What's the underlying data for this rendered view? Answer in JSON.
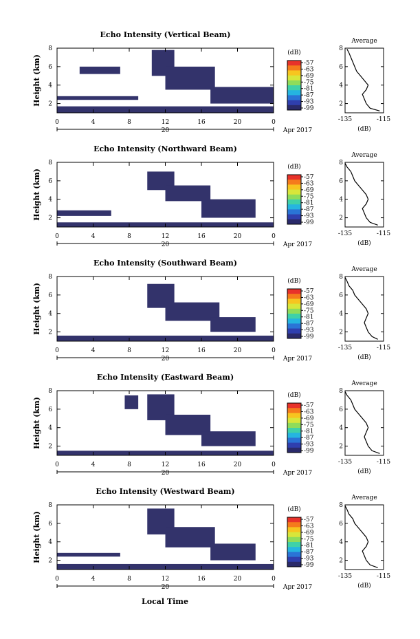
{
  "figure": {
    "x_label": "Local Time",
    "date_label": "Apr 2017",
    "day_label": "20",
    "ylabel": "Height (km)",
    "colorbar_unit": "(dB)",
    "colorbar_ticks": [
      "-57",
      "-63",
      "-69",
      "-75",
      "-81",
      "-87",
      "-93",
      "-99"
    ],
    "colorbar_colors": [
      "#e8322a",
      "#f57b1c",
      "#f7c51f",
      "#d8e63a",
      "#8fdc5a",
      "#3fd1a8",
      "#25b5e0",
      "#2a74d6",
      "#2f3fae",
      "#2a2a6a"
    ],
    "avg_title": "Average",
    "avg_xlabel": "(dB)",
    "avg_xticks": [
      "-135",
      "-115"
    ]
  },
  "chart_data": [
    {
      "type": "heatmap",
      "title": "Echo Intensity (Vertical Beam)",
      "xlabel": "Local Time",
      "ylabel": "Height (km)",
      "xlim": [
        0,
        24
      ],
      "ylim": [
        1,
        8
      ],
      "xticks": [
        "0",
        "4",
        "8",
        "12",
        "16",
        "20",
        "0"
      ],
      "yticks": [
        "2",
        "4",
        "6",
        "8"
      ],
      "colorbar": {
        "label": "(dB)",
        "range": [
          -99,
          -57
        ]
      },
      "echo_regions": [
        {
          "t": [
            0,
            24
          ],
          "h": [
            1.0,
            1.7
          ],
          "level": -99
        },
        {
          "t": [
            10.5,
            13
          ],
          "h": [
            5.0,
            7.8
          ],
          "level": -99
        },
        {
          "t": [
            12,
            17.5
          ],
          "h": [
            3.5,
            6.0
          ],
          "level": -99
        },
        {
          "t": [
            17,
            24
          ],
          "h": [
            2.0,
            3.8
          ],
          "level": -99
        },
        {
          "t": [
            0,
            9
          ],
          "h": [
            2.4,
            2.8
          ],
          "level": -99
        },
        {
          "t": [
            2.5,
            7
          ],
          "h": [
            5.2,
            6.0
          ],
          "level": -99
        }
      ],
      "average_profile": {
        "title": "Average",
        "xlabel": "(dB)",
        "xlim": [
          -135,
          -115
        ],
        "ylim": [
          1,
          8
        ],
        "height": [
          1.2,
          1.5,
          2.0,
          2.5,
          3.0,
          3.5,
          4.0,
          4.5,
          5.0,
          5.5,
          6.0,
          6.5,
          7.0,
          7.5,
          7.9
        ],
        "db": [
          -117,
          -122,
          -124,
          -125,
          -126,
          -124,
          -123,
          -125,
          -127,
          -129,
          -130,
          -131,
          -132,
          -133,
          -134
        ]
      }
    },
    {
      "type": "heatmap",
      "title": "Echo Intensity (Northward Beam)",
      "xlabel": "Local Time",
      "ylabel": "Height (km)",
      "xlim": [
        0,
        24
      ],
      "ylim": [
        1,
        8
      ],
      "xticks": [
        "0",
        "4",
        "8",
        "12",
        "16",
        "20",
        "0"
      ],
      "yticks": [
        "2",
        "4",
        "6",
        "8"
      ],
      "colorbar": {
        "label": "(dB)",
        "range": [
          -99,
          -57
        ]
      },
      "echo_regions": [
        {
          "t": [
            0,
            24
          ],
          "h": [
            1.0,
            1.5
          ],
          "level": -99
        },
        {
          "t": [
            10,
            13
          ],
          "h": [
            5.0,
            7.0
          ],
          "level": -99
        },
        {
          "t": [
            12,
            17
          ],
          "h": [
            3.8,
            5.5
          ],
          "level": -99
        },
        {
          "t": [
            16,
            22
          ],
          "h": [
            2.0,
            4.0
          ],
          "level": -99
        },
        {
          "t": [
            0,
            6
          ],
          "h": [
            2.2,
            2.8
          ],
          "level": -99
        }
      ],
      "average_profile": {
        "title": "Average",
        "xlabel": "(dB)",
        "xlim": [
          -135,
          -115
        ],
        "ylim": [
          1,
          8
        ],
        "height": [
          1.2,
          1.5,
          2.0,
          2.5,
          3.0,
          3.5,
          4.0,
          4.5,
          5.0,
          5.5,
          6.0,
          6.5,
          7.0,
          7.5,
          7.9
        ],
        "db": [
          -118,
          -122,
          -124,
          -125,
          -126,
          -124,
          -123,
          -124,
          -126,
          -128,
          -130,
          -131,
          -132,
          -134,
          -135
        ]
      }
    },
    {
      "type": "heatmap",
      "title": "Echo Intensity (Southward Beam)",
      "xlabel": "Local Time",
      "ylabel": "Height (km)",
      "xlim": [
        0,
        24
      ],
      "ylim": [
        1,
        8
      ],
      "xticks": [
        "0",
        "4",
        "8",
        "12",
        "16",
        "20",
        "0"
      ],
      "yticks": [
        "2",
        "4",
        "6",
        "8"
      ],
      "colorbar": {
        "label": "(dB)",
        "range": [
          -99,
          -57
        ]
      },
      "echo_regions": [
        {
          "t": [
            0,
            24
          ],
          "h": [
            1.0,
            1.6
          ],
          "level": -99
        },
        {
          "t": [
            10,
            13
          ],
          "h": [
            4.6,
            7.2
          ],
          "level": -99
        },
        {
          "t": [
            12,
            18
          ],
          "h": [
            3.2,
            5.2
          ],
          "level": -99
        },
        {
          "t": [
            17,
            22
          ],
          "h": [
            2.0,
            3.6
          ],
          "level": -99
        }
      ],
      "average_profile": {
        "title": "Average",
        "xlabel": "(dB)",
        "xlim": [
          -135,
          -115
        ],
        "ylim": [
          1,
          8
        ],
        "height": [
          1.2,
          1.5,
          2.0,
          2.5,
          3.0,
          3.5,
          4.0,
          4.5,
          5.0,
          5.5,
          6.0,
          6.5,
          7.0,
          7.5,
          7.9
        ],
        "db": [
          -118,
          -121,
          -123,
          -124,
          -125,
          -124,
          -123,
          -124,
          -126,
          -128,
          -130,
          -131,
          -133,
          -134,
          -135
        ]
      }
    },
    {
      "type": "heatmap",
      "title": "Echo Intensity (Eastward Beam)",
      "xlabel": "Local Time",
      "ylabel": "Height (km)",
      "xlim": [
        0,
        24
      ],
      "ylim": [
        1,
        8
      ],
      "xticks": [
        "0",
        "4",
        "8",
        "12",
        "16",
        "20",
        "0"
      ],
      "yticks": [
        "2",
        "4",
        "6",
        "8"
      ],
      "colorbar": {
        "label": "(dB)",
        "range": [
          -99,
          -57
        ]
      },
      "echo_regions": [
        {
          "t": [
            0,
            24
          ],
          "h": [
            1.0,
            1.5
          ],
          "level": -99
        },
        {
          "t": [
            10,
            13
          ],
          "h": [
            4.8,
            7.6
          ],
          "level": -99
        },
        {
          "t": [
            12,
            17
          ],
          "h": [
            3.2,
            5.4
          ],
          "level": -99
        },
        {
          "t": [
            16,
            22
          ],
          "h": [
            2.0,
            3.6
          ],
          "level": -99
        },
        {
          "t": [
            7.5,
            9
          ],
          "h": [
            6.0,
            7.5
          ],
          "level": -99
        }
      ],
      "average_profile": {
        "title": "Average",
        "xlabel": "(dB)",
        "xlim": [
          -135,
          -115
        ],
        "ylim": [
          1,
          8
        ],
        "height": [
          1.2,
          1.5,
          2.0,
          2.5,
          3.0,
          3.5,
          4.0,
          4.5,
          5.0,
          5.5,
          6.0,
          6.5,
          7.0,
          7.5,
          7.9
        ],
        "db": [
          -117,
          -121,
          -123,
          -124,
          -125,
          -124,
          -123,
          -124,
          -126,
          -128,
          -130,
          -131,
          -132,
          -134,
          -135
        ]
      }
    },
    {
      "type": "heatmap",
      "title": "Echo Intensity (Westward Beam)",
      "xlabel": "Local Time",
      "ylabel": "Height (km)",
      "xlim": [
        0,
        24
      ],
      "ylim": [
        1,
        8
      ],
      "xticks": [
        "0",
        "4",
        "8",
        "12",
        "16",
        "20",
        "0"
      ],
      "yticks": [
        "2",
        "4",
        "6",
        "8"
      ],
      "colorbar": {
        "label": "(dB)",
        "range": [
          -99,
          -57
        ]
      },
      "echo_regions": [
        {
          "t": [
            0,
            24
          ],
          "h": [
            1.0,
            1.6
          ],
          "level": -99
        },
        {
          "t": [
            10,
            13
          ],
          "h": [
            4.8,
            7.6
          ],
          "level": -99
        },
        {
          "t": [
            12,
            17.5
          ],
          "h": [
            3.4,
            5.6
          ],
          "level": -99
        },
        {
          "t": [
            17,
            22
          ],
          "h": [
            2.0,
            3.8
          ],
          "level": -99
        },
        {
          "t": [
            0,
            7
          ],
          "h": [
            2.4,
            2.8
          ],
          "level": -99
        }
      ],
      "average_profile": {
        "title": "Average",
        "xlabel": "(dB)",
        "xlim": [
          -135,
          -115
        ],
        "ylim": [
          1,
          8
        ],
        "height": [
          1.2,
          1.5,
          2.0,
          2.5,
          3.0,
          3.5,
          4.0,
          4.5,
          5.0,
          5.5,
          6.0,
          6.5,
          7.0,
          7.5,
          7.9
        ],
        "db": [
          -118,
          -122,
          -124,
          -125,
          -126,
          -124,
          -123,
          -124,
          -126,
          -128,
          -130,
          -131,
          -133,
          -134,
          -135
        ]
      }
    }
  ]
}
